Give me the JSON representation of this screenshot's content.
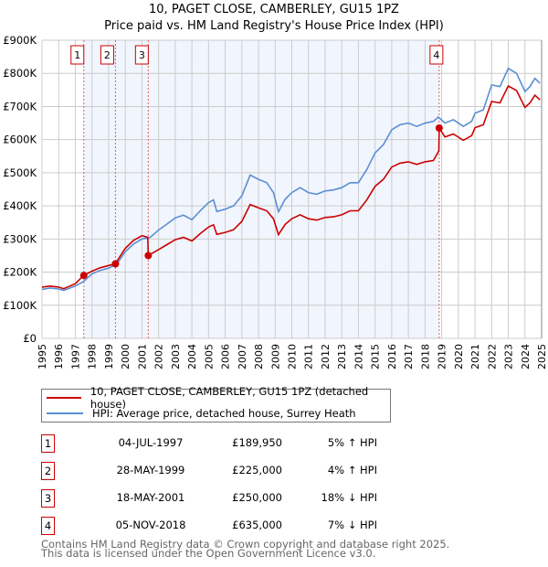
{
  "chart_data": {
    "type": "line",
    "title": "10, PAGET CLOSE, CAMBERLEY, GU15 1PZ",
    "subtitle": "Price paid vs. HM Land Registry's House Price Index (HPI)",
    "xlim": [
      1995,
      2025
    ],
    "ylim": [
      0,
      900000
    ],
    "x_ticks": [
      "1995",
      "1996",
      "1997",
      "1998",
      "1999",
      "2000",
      "2001",
      "2002",
      "2003",
      "2004",
      "2005",
      "2006",
      "2007",
      "2008",
      "2009",
      "2010",
      "2011",
      "2012",
      "2013",
      "2014",
      "2015",
      "2016",
      "2017",
      "2018",
      "2019",
      "2020",
      "2021",
      "2022",
      "2023",
      "2024",
      "2025"
    ],
    "y_ticks": [
      {
        "v": 0,
        "label": "£0"
      },
      {
        "v": 100000,
        "label": "£100K"
      },
      {
        "v": 200000,
        "label": "£200K"
      },
      {
        "v": 300000,
        "label": "£300K"
      },
      {
        "v": 400000,
        "label": "£400K"
      },
      {
        "v": 500000,
        "label": "£500K"
      },
      {
        "v": 600000,
        "label": "£600K"
      },
      {
        "v": 700000,
        "label": "£700K"
      },
      {
        "v": 800000,
        "label": "£800K"
      },
      {
        "v": 900000,
        "label": "£900K"
      }
    ],
    "grid": true,
    "series": [
      {
        "name": "10, PAGET CLOSE, CAMBERLEY, GU15 1PZ (detached house)",
        "color": "#cc0000",
        "x": [
          1995.0,
          1995.5,
          1996.0,
          1996.3,
          1997.0,
          1997.5,
          1998.0,
          1998.5,
          1999.0,
          1999.4,
          2000.0,
          2000.5,
          2001.0,
          2001.35,
          2001.38,
          2002.0,
          2002.5,
          2003.0,
          2003.5,
          2004.0,
          2004.5,
          2005.0,
          2005.3,
          2005.5,
          2006.0,
          2006.5,
          2007.0,
          2007.5,
          2008.0,
          2008.5,
          2008.9,
          2009.2,
          2009.6,
          2010.0,
          2010.5,
          2011.0,
          2011.5,
          2012.0,
          2012.5,
          2013.0,
          2013.5,
          2014.0,
          2014.5,
          2015.0,
          2015.5,
          2016.0,
          2016.5,
          2017.0,
          2017.5,
          2018.0,
          2018.5,
          2018.83,
          2018.85,
          2019.2,
          2019.7,
          2020.3,
          2020.8,
          2021.0,
          2021.5,
          2022.0,
          2022.5,
          2023.0,
          2023.5,
          2024.0,
          2024.3,
          2024.6,
          2024.9
        ],
        "y": [
          155000,
          158000,
          155000,
          150000,
          165000,
          190000,
          203000,
          213000,
          220000,
          225000,
          272000,
          296000,
          310000,
          305000,
          250000,
          268000,
          283000,
          298000,
          305000,
          294000,
          316000,
          336000,
          343000,
          314000,
          320000,
          328000,
          353000,
          404000,
          394000,
          385000,
          361000,
          313000,
          344000,
          361000,
          373000,
          361000,
          357000,
          365000,
          367000,
          373000,
          385000,
          385000,
          418000,
          459000,
          480000,
          517000,
          529000,
          533000,
          525000,
          533000,
          537000,
          566000,
          635000,
          608000,
          617000,
          598000,
          612000,
          636000,
          645000,
          715000,
          711000,
          762000,
          748000,
          697000,
          711000,
          734000,
          720000
        ]
      },
      {
        "name": "HPI: Average price, detached house, Surrey Heath",
        "color": "#5b8fd4",
        "x": [
          1995.0,
          1995.5,
          1996.0,
          1996.3,
          1997.0,
          1997.5,
          1998.0,
          1998.5,
          1999.0,
          1999.5,
          2000.0,
          2000.5,
          2001.0,
          2001.5,
          2002.0,
          2002.5,
          2003.0,
          2003.5,
          2004.0,
          2004.5,
          2005.0,
          2005.3,
          2005.5,
          2006.0,
          2006.5,
          2007.0,
          2007.5,
          2008.0,
          2008.5,
          2008.9,
          2009.2,
          2009.6,
          2010.0,
          2010.5,
          2011.0,
          2011.5,
          2012.0,
          2012.5,
          2013.0,
          2013.5,
          2014.0,
          2014.5,
          2015.0,
          2015.5,
          2016.0,
          2016.5,
          2017.0,
          2017.5,
          2018.0,
          2018.5,
          2018.8,
          2019.2,
          2019.7,
          2020.3,
          2020.8,
          2021.0,
          2021.5,
          2022.0,
          2022.5,
          2023.0,
          2023.5,
          2024.0,
          2024.3,
          2024.6,
          2024.9
        ],
        "y": [
          148000,
          152000,
          149000,
          145000,
          158000,
          172000,
          195000,
          205000,
          212000,
          225000,
          262000,
          285000,
          300000,
          305000,
          327000,
          345000,
          364000,
          372000,
          358000,
          385000,
          410000,
          418000,
          383000,
          390000,
          400000,
          430000,
          493000,
          480000,
          470000,
          440000,
          382000,
          420000,
          440000,
          455000,
          440000,
          435000,
          445000,
          448000,
          455000,
          470000,
          470000,
          510000,
          560000,
          585000,
          630000,
          645000,
          650000,
          640000,
          650000,
          655000,
          668000,
          650000,
          660000,
          640000,
          655000,
          680000,
          690000,
          765000,
          760000,
          815000,
          800000,
          745000,
          760000,
          785000,
          770000
        ]
      }
    ],
    "sales": [
      {
        "id": "1",
        "x": 1997.51,
        "price": 189950
      },
      {
        "id": "2",
        "x": 1999.41,
        "price": 225000
      },
      {
        "id": "3",
        "x": 2001.38,
        "price": 250000
      },
      {
        "id": "4",
        "x": 2018.85,
        "price": 635000
      }
    ],
    "legend_position": "below"
  },
  "legend": [
    {
      "label": "10, PAGET CLOSE, CAMBERLEY, GU15 1PZ (detached house)",
      "color": "#cc0000"
    },
    {
      "label": "HPI: Average price, detached house, Surrey Heath",
      "color": "#5b8fd4"
    }
  ],
  "table": [
    {
      "num": "1",
      "date": "04-JUL-1997",
      "price": "£189,950",
      "hpi": "5% ↑ HPI"
    },
    {
      "num": "2",
      "date": "28-MAY-1999",
      "price": "£225,000",
      "hpi": "4% ↑ HPI"
    },
    {
      "num": "3",
      "date": "18-MAY-2001",
      "price": "£250,000",
      "hpi": "18% ↓ HPI"
    },
    {
      "num": "4",
      "date": "05-NOV-2018",
      "price": "£635,000",
      "hpi": "7% ↓ HPI"
    }
  ],
  "footer": {
    "line1": "Contains HM Land Registry data © Crown copyright and database right 2025.",
    "line2": "This data is licensed under the Open Government Licence v3.0."
  }
}
